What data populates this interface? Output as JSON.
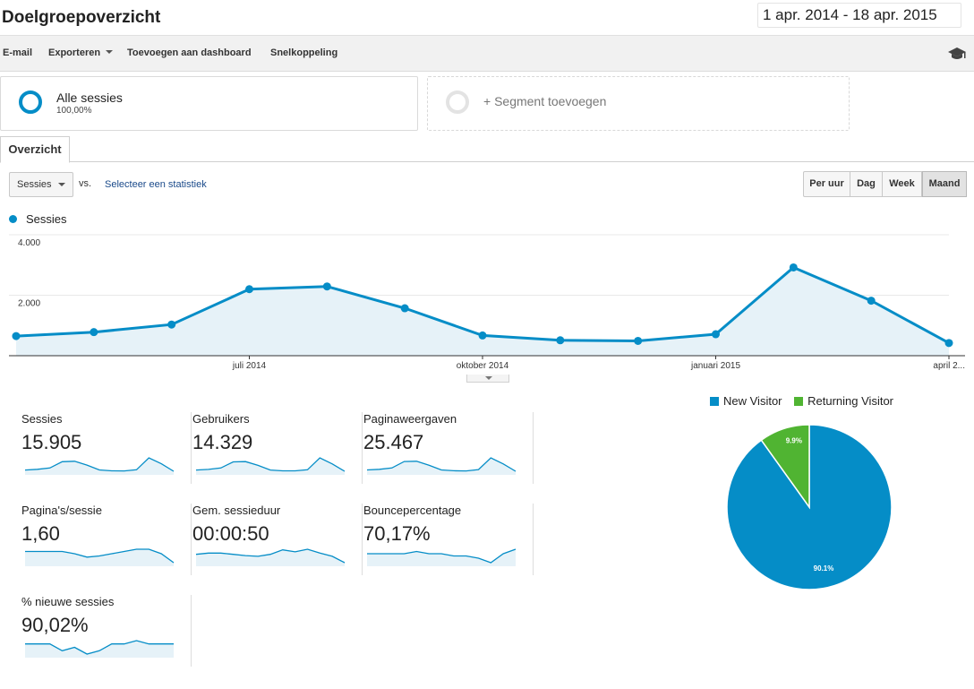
{
  "header": {
    "title": "Doelgroepoverzicht",
    "date_range": "1 apr. 2014 - 18 apr. 2015"
  },
  "toolbar": {
    "items": [
      "E-mail",
      "Exporteren",
      "Toevoegen aan dashboard",
      "Snelkoppeling"
    ],
    "icon": "graduation-cap-icon"
  },
  "segments": {
    "active": {
      "title": "Alle sessies",
      "percent": "100,00%"
    },
    "add": {
      "label": "+ Segment toevoegen"
    }
  },
  "tabs": {
    "overview": "Overzicht"
  },
  "controls": {
    "metric": "Sessies",
    "vs": "vs.",
    "select_stat": "Selecteer een statistiek",
    "granularity": [
      "Per uur",
      "Dag",
      "Week",
      "Maand"
    ],
    "active_granularity": "Maand"
  },
  "chart_data": {
    "type": "area",
    "legend": "Sessies",
    "color": "#058dc7",
    "x": [
      "apr 2014",
      "mei 2014",
      "jun 2014",
      "jul 2014",
      "aug 2014",
      "sep 2014",
      "okt 2014",
      "nov 2014",
      "dec 2014",
      "jan 2015",
      "feb 2015",
      "mrt 2015",
      "apr 2015"
    ],
    "values": [
      650,
      780,
      1030,
      2200,
      2290,
      1570,
      670,
      510,
      490,
      710,
      2920,
      1820,
      420
    ],
    "y_ticks": [
      "4.000",
      "2.000"
    ],
    "ylim": [
      0,
      4000
    ],
    "x_tick_labels": [
      "juli 2014",
      "oktober 2014",
      "januari 2015",
      "april 2..."
    ]
  },
  "metrics": [
    {
      "label": "Sessies",
      "value": "15.905",
      "spark": [
        650,
        780,
        1030,
        2200,
        2290,
        1570,
        670,
        510,
        490,
        710,
        2920,
        1820,
        420
      ]
    },
    {
      "label": "Gebruikers",
      "value": "14.329",
      "spark": [
        600,
        700,
        950,
        2000,
        2050,
        1400,
        600,
        450,
        450,
        650,
        2700,
        1650,
        380
      ]
    },
    {
      "label": "Paginaweergaven",
      "value": "25.467",
      "spark": [
        1100,
        1300,
        1700,
        3600,
        3700,
        2500,
        1100,
        850,
        800,
        1200,
        4700,
        2900,
        700
      ]
    },
    {
      "label": "Pagina's/sessie",
      "value": "1,60",
      "spark": [
        1.6,
        1.6,
        1.6,
        1.6,
        1.58,
        1.55,
        1.56,
        1.58,
        1.6,
        1.62,
        1.62,
        1.58,
        1.5
      ]
    },
    {
      "label": "Gem. sessieduur",
      "value": "00:00:50",
      "spark": [
        48,
        50,
        50,
        48,
        46,
        45,
        48,
        55,
        52,
        56,
        50,
        45,
        35
      ]
    },
    {
      "label": "Bouncepercentage",
      "value": "70,17%",
      "spark": [
        70,
        70,
        70,
        70,
        71,
        70,
        70,
        69,
        69,
        68,
        66,
        70,
        72
      ]
    },
    {
      "label": "% nieuwe sessies",
      "value": "90,02%",
      "spark": [
        90,
        90,
        90,
        89.8,
        89.9,
        89.7,
        89.8,
        90,
        90,
        90.1,
        90,
        90,
        90
      ]
    }
  ],
  "pie": {
    "legend": [
      {
        "name": "New Visitor",
        "color": "#058dc7"
      },
      {
        "name": "Returning Visitor",
        "color": "#50b432"
      }
    ],
    "slices": [
      {
        "name": "New Visitor",
        "value": 90.1,
        "label": "90.1%",
        "color": "#058dc7"
      },
      {
        "name": "Returning Visitor",
        "value": 9.9,
        "label": "9.9%",
        "color": "#50b432"
      }
    ]
  }
}
